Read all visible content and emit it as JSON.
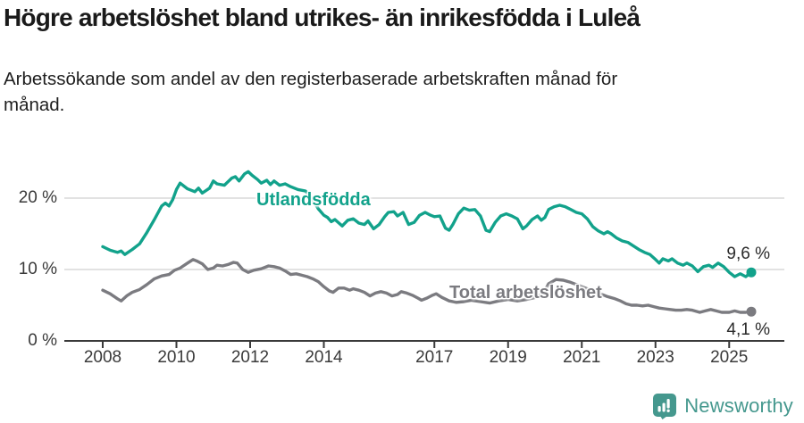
{
  "header": {
    "title": "Högre arbetslöshet bland utrikes- än inrikesfödda i Luleå",
    "subtitle": "Arbetssökande som andel av den registerbaserade arbetskraften månad för månad."
  },
  "footer": {
    "brand": "Newsworthy",
    "logo_icon": "speech-bubble-bar-chart-icon",
    "brand_color": "#45988e"
  },
  "colors": {
    "series_utlandsfodda": "#12a28b",
    "series_total": "#7b7b80",
    "gridline": "#d9d9d9",
    "axis": "#3a3a3a",
    "title_text": "#1a1a1a",
    "value_label_text": "#2b2b2b"
  },
  "chart_data": {
    "type": "line",
    "title": "Högre arbetslöshet bland utrikes- än inrikesfödda i Luleå",
    "subtitle": "Arbetssökande som andel av den registerbaserade arbetskraften månad för månad.",
    "xlabel": "",
    "ylabel": "",
    "unit": "%",
    "grid": "horizontal",
    "legend_position": "inline-labels",
    "xlim": [
      2006.95,
      2026.55
    ],
    "ylim": [
      0,
      25.2
    ],
    "x_ticks": [
      {
        "x": 2008,
        "label": "2008"
      },
      {
        "x": 2010,
        "label": "2010"
      },
      {
        "x": 2012,
        "label": "2012"
      },
      {
        "x": 2014,
        "label": "2014"
      },
      {
        "x": 2017,
        "label": "2017"
      },
      {
        "x": 2019,
        "label": "2019"
      },
      {
        "x": 2021,
        "label": "2021"
      },
      {
        "x": 2023,
        "label": "2023"
      },
      {
        "x": 2025,
        "label": "2025"
      }
    ],
    "y_ticks": [
      {
        "value": 0,
        "label": "0 %"
      },
      {
        "value": 10,
        "label": "10 %"
      },
      {
        "value": 20,
        "label": "20 %"
      }
    ],
    "series": [
      {
        "name": "Utlandsfödda",
        "color": "#12a28b",
        "end_label": "9,6 %",
        "end_value": 9.6,
        "points": [
          [
            2008.0,
            13.2
          ],
          [
            2008.2,
            12.7
          ],
          [
            2008.4,
            12.4
          ],
          [
            2008.5,
            12.6
          ],
          [
            2008.6,
            12.1
          ],
          [
            2008.8,
            12.8
          ],
          [
            2009.0,
            13.6
          ],
          [
            2009.2,
            15.2
          ],
          [
            2009.4,
            17.0
          ],
          [
            2009.6,
            18.9
          ],
          [
            2009.7,
            19.3
          ],
          [
            2009.8,
            18.9
          ],
          [
            2009.9,
            19.8
          ],
          [
            2010.0,
            21.2
          ],
          [
            2010.1,
            22.1
          ],
          [
            2010.3,
            21.3
          ],
          [
            2010.5,
            20.9
          ],
          [
            2010.6,
            21.4
          ],
          [
            2010.7,
            20.7
          ],
          [
            2010.9,
            21.4
          ],
          [
            2011.0,
            22.4
          ],
          [
            2011.1,
            22.0
          ],
          [
            2011.3,
            21.8
          ],
          [
            2011.5,
            22.8
          ],
          [
            2011.6,
            23.0
          ],
          [
            2011.7,
            22.4
          ],
          [
            2011.85,
            23.4
          ],
          [
            2011.95,
            23.7
          ],
          [
            2012.05,
            23.2
          ],
          [
            2012.2,
            22.6
          ],
          [
            2012.3,
            22.1
          ],
          [
            2012.45,
            22.5
          ],
          [
            2012.55,
            21.9
          ],
          [
            2012.65,
            22.4
          ],
          [
            2012.8,
            21.8
          ],
          [
            2012.95,
            22.0
          ],
          [
            2013.1,
            21.6
          ],
          [
            2013.3,
            21.2
          ],
          [
            2013.5,
            21.0
          ],
          [
            2013.7,
            19.8
          ],
          [
            2013.85,
            18.5
          ],
          [
            2014.0,
            17.6
          ],
          [
            2014.1,
            17.3
          ],
          [
            2014.2,
            16.7
          ],
          [
            2014.3,
            17.0
          ],
          [
            2014.5,
            16.1
          ],
          [
            2014.65,
            16.9
          ],
          [
            2014.8,
            17.1
          ],
          [
            2014.95,
            16.5
          ],
          [
            2015.1,
            16.3
          ],
          [
            2015.2,
            16.8
          ],
          [
            2015.35,
            15.7
          ],
          [
            2015.5,
            16.3
          ],
          [
            2015.65,
            17.4
          ],
          [
            2015.75,
            18.0
          ],
          [
            2015.9,
            18.1
          ],
          [
            2016.0,
            17.5
          ],
          [
            2016.15,
            18.0
          ],
          [
            2016.3,
            16.3
          ],
          [
            2016.45,
            16.6
          ],
          [
            2016.6,
            17.6
          ],
          [
            2016.75,
            18.0
          ],
          [
            2016.9,
            17.6
          ],
          [
            2017.0,
            17.4
          ],
          [
            2017.15,
            17.5
          ],
          [
            2017.3,
            15.8
          ],
          [
            2017.4,
            15.5
          ],
          [
            2017.5,
            16.3
          ],
          [
            2017.65,
            17.8
          ],
          [
            2017.8,
            18.6
          ],
          [
            2017.95,
            18.3
          ],
          [
            2018.1,
            18.4
          ],
          [
            2018.25,
            17.5
          ],
          [
            2018.4,
            15.5
          ],
          [
            2018.5,
            15.3
          ],
          [
            2018.65,
            16.6
          ],
          [
            2018.8,
            17.5
          ],
          [
            2018.95,
            17.8
          ],
          [
            2019.1,
            17.5
          ],
          [
            2019.25,
            17.1
          ],
          [
            2019.4,
            15.7
          ],
          [
            2019.5,
            16.1
          ],
          [
            2019.65,
            17.0
          ],
          [
            2019.8,
            17.5
          ],
          [
            2019.9,
            16.9
          ],
          [
            2020.0,
            17.3
          ],
          [
            2020.1,
            18.4
          ],
          [
            2020.25,
            18.8
          ],
          [
            2020.4,
            19.0
          ],
          [
            2020.55,
            18.8
          ],
          [
            2020.7,
            18.4
          ],
          [
            2020.85,
            18.0
          ],
          [
            2021.0,
            17.8
          ],
          [
            2021.15,
            17.1
          ],
          [
            2021.3,
            16.0
          ],
          [
            2021.45,
            15.4
          ],
          [
            2021.6,
            15.0
          ],
          [
            2021.7,
            15.3
          ],
          [
            2021.8,
            15.0
          ],
          [
            2021.95,
            14.4
          ],
          [
            2022.1,
            14.0
          ],
          [
            2022.25,
            13.8
          ],
          [
            2022.4,
            13.3
          ],
          [
            2022.55,
            12.8
          ],
          [
            2022.7,
            12.4
          ],
          [
            2022.85,
            12.1
          ],
          [
            2023.0,
            11.4
          ],
          [
            2023.1,
            10.9
          ],
          [
            2023.2,
            11.5
          ],
          [
            2023.35,
            11.2
          ],
          [
            2023.45,
            11.5
          ],
          [
            2023.6,
            10.9
          ],
          [
            2023.75,
            10.6
          ],
          [
            2023.85,
            10.9
          ],
          [
            2024.0,
            10.5
          ],
          [
            2024.15,
            9.7
          ],
          [
            2024.3,
            10.4
          ],
          [
            2024.45,
            10.6
          ],
          [
            2024.55,
            10.3
          ],
          [
            2024.7,
            10.9
          ],
          [
            2024.85,
            10.4
          ],
          [
            2025.0,
            9.6
          ],
          [
            2025.15,
            9.0
          ],
          [
            2025.3,
            9.4
          ],
          [
            2025.45,
            9.0
          ],
          [
            2025.6,
            9.6
          ]
        ]
      },
      {
        "name": "Total arbetslöshet",
        "color": "#7b7b80",
        "end_label": "4,1 %",
        "end_value": 4.1,
        "points": [
          [
            2008.0,
            7.1
          ],
          [
            2008.2,
            6.6
          ],
          [
            2008.4,
            5.9
          ],
          [
            2008.5,
            5.6
          ],
          [
            2008.65,
            6.3
          ],
          [
            2008.8,
            6.8
          ],
          [
            2009.0,
            7.2
          ],
          [
            2009.2,
            7.9
          ],
          [
            2009.4,
            8.7
          ],
          [
            2009.6,
            9.1
          ],
          [
            2009.8,
            9.3
          ],
          [
            2009.95,
            9.9
          ],
          [
            2010.1,
            10.2
          ],
          [
            2010.3,
            10.9
          ],
          [
            2010.45,
            11.4
          ],
          [
            2010.55,
            11.2
          ],
          [
            2010.7,
            10.8
          ],
          [
            2010.85,
            10.0
          ],
          [
            2011.0,
            10.2
          ],
          [
            2011.1,
            10.6
          ],
          [
            2011.25,
            10.5
          ],
          [
            2011.4,
            10.7
          ],
          [
            2011.55,
            11.0
          ],
          [
            2011.65,
            10.9
          ],
          [
            2011.8,
            10.0
          ],
          [
            2011.95,
            9.6
          ],
          [
            2012.1,
            9.9
          ],
          [
            2012.3,
            10.1
          ],
          [
            2012.5,
            10.5
          ],
          [
            2012.65,
            10.4
          ],
          [
            2012.8,
            10.2
          ],
          [
            2012.95,
            9.8
          ],
          [
            2013.1,
            9.3
          ],
          [
            2013.25,
            9.4
          ],
          [
            2013.4,
            9.2
          ],
          [
            2013.55,
            9.0
          ],
          [
            2013.7,
            8.7
          ],
          [
            2013.85,
            8.3
          ],
          [
            2014.0,
            7.6
          ],
          [
            2014.15,
            7.0
          ],
          [
            2014.25,
            6.8
          ],
          [
            2014.4,
            7.4
          ],
          [
            2014.55,
            7.4
          ],
          [
            2014.7,
            7.1
          ],
          [
            2014.8,
            7.3
          ],
          [
            2014.95,
            7.1
          ],
          [
            2015.1,
            6.8
          ],
          [
            2015.25,
            6.3
          ],
          [
            2015.4,
            6.7
          ],
          [
            2015.55,
            6.9
          ],
          [
            2015.7,
            6.7
          ],
          [
            2015.85,
            6.3
          ],
          [
            2016.0,
            6.5
          ],
          [
            2016.1,
            6.9
          ],
          [
            2016.25,
            6.7
          ],
          [
            2016.4,
            6.4
          ],
          [
            2016.55,
            6.0
          ],
          [
            2016.65,
            5.7
          ],
          [
            2016.8,
            6.0
          ],
          [
            2016.95,
            6.4
          ],
          [
            2017.05,
            6.6
          ],
          [
            2017.2,
            6.1
          ],
          [
            2017.4,
            5.6
          ],
          [
            2017.6,
            5.4
          ],
          [
            2017.8,
            5.5
          ],
          [
            2018.0,
            5.7
          ],
          [
            2018.25,
            5.5
          ],
          [
            2018.5,
            5.3
          ],
          [
            2018.75,
            5.6
          ],
          [
            2019.0,
            5.8
          ],
          [
            2019.25,
            5.6
          ],
          [
            2019.5,
            5.8
          ],
          [
            2019.75,
            6.1
          ],
          [
            2019.95,
            6.6
          ],
          [
            2020.1,
            8.0
          ],
          [
            2020.3,
            8.6
          ],
          [
            2020.5,
            8.5
          ],
          [
            2020.7,
            8.2
          ],
          [
            2020.9,
            7.8
          ],
          [
            2021.1,
            7.4
          ],
          [
            2021.3,
            7.0
          ],
          [
            2021.5,
            6.6
          ],
          [
            2021.7,
            6.2
          ],
          [
            2021.9,
            5.9
          ],
          [
            2022.05,
            5.6
          ],
          [
            2022.2,
            5.2
          ],
          [
            2022.35,
            5.0
          ],
          [
            2022.5,
            5.0
          ],
          [
            2022.65,
            4.9
          ],
          [
            2022.8,
            5.0
          ],
          [
            2022.95,
            4.8
          ],
          [
            2023.1,
            4.6
          ],
          [
            2023.25,
            4.5
          ],
          [
            2023.4,
            4.4
          ],
          [
            2023.55,
            4.3
          ],
          [
            2023.7,
            4.3
          ],
          [
            2023.85,
            4.4
          ],
          [
            2024.0,
            4.3
          ],
          [
            2024.2,
            4.0
          ],
          [
            2024.35,
            4.2
          ],
          [
            2024.5,
            4.4
          ],
          [
            2024.65,
            4.2
          ],
          [
            2024.8,
            4.0
          ],
          [
            2025.0,
            4.0
          ],
          [
            2025.15,
            4.2
          ],
          [
            2025.3,
            4.0
          ],
          [
            2025.45,
            4.0
          ],
          [
            2025.6,
            4.1
          ]
        ]
      }
    ]
  }
}
